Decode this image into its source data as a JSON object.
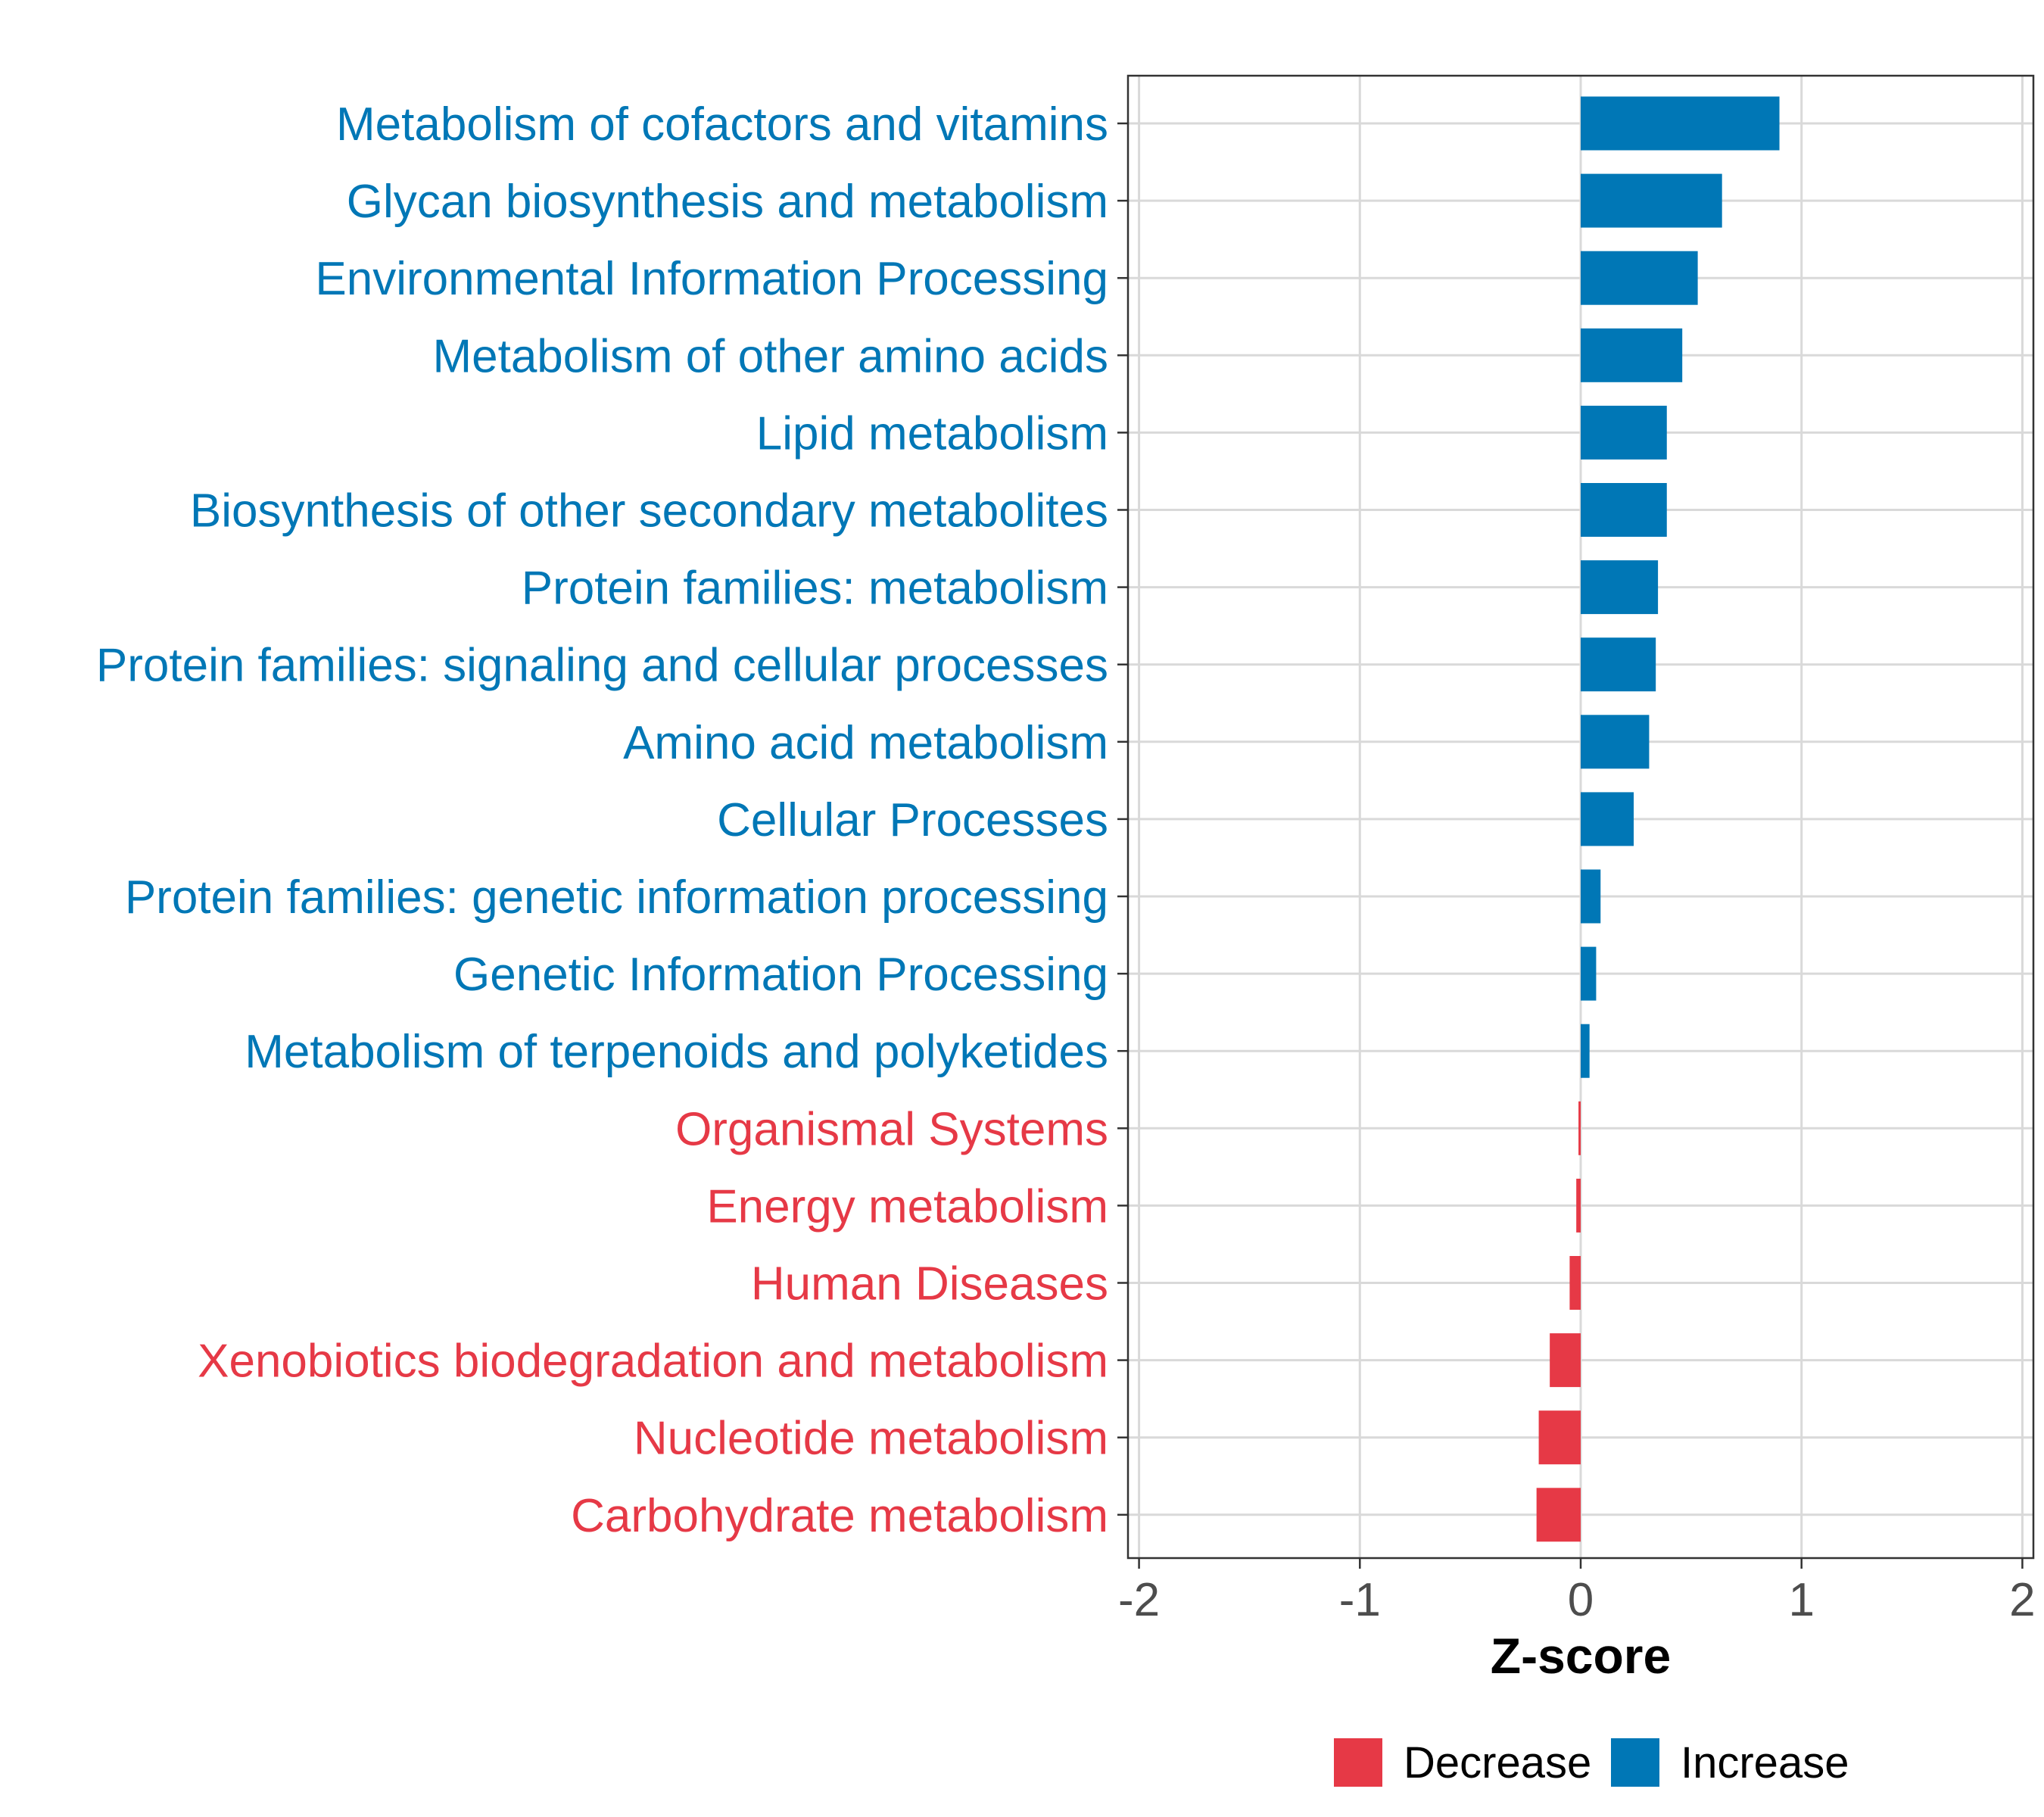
{
  "colors": {
    "decrease": "#e63946",
    "increase": "#0077b6",
    "grid": "#d9d9d9",
    "panel_border": "#333333",
    "tick_text": "#4d4d4d"
  },
  "chart_data": {
    "type": "bar",
    "orientation": "horizontal",
    "title": "",
    "xlabel": "Z-score",
    "ylabel": "",
    "xlim": [
      -2.05,
      2.05
    ],
    "xticks": [
      -2,
      -1,
      0,
      1,
      2
    ],
    "xtick_labels": [
      "-2",
      "-1",
      "0",
      "1",
      "2"
    ],
    "grid": true,
    "legend_position": "bottom",
    "legend": [
      {
        "name": "Decrease",
        "color": "#e63946"
      },
      {
        "name": "Increase",
        "color": "#0077b6"
      }
    ],
    "categories": [
      "Metabolism of cofactors and vitamins",
      "Glycan biosynthesis and metabolism",
      "Environmental Information Processing",
      "Metabolism of other amino acids",
      "Lipid metabolism",
      "Biosynthesis of other secondary metabolites",
      "Protein families: metabolism",
      "Protein families: signaling and cellular processes",
      "Amino acid metabolism",
      "Cellular Processes",
      "Protein families: genetic information processing",
      "Genetic Information Processing",
      "Metabolism of terpenoids and polyketides",
      "Organismal Systems",
      "Energy metabolism",
      "Human Diseases",
      "Xenobiotics biodegradation and metabolism",
      "Nucleotide metabolism",
      "Carbohydrate metabolism"
    ],
    "values": [
      0.9,
      0.64,
      0.53,
      0.46,
      0.39,
      0.39,
      0.35,
      0.34,
      0.31,
      0.24,
      0.09,
      0.07,
      0.04,
      -0.01,
      -0.02,
      -0.05,
      -0.14,
      -0.19,
      -0.2
    ],
    "groups": [
      "Increase",
      "Increase",
      "Increase",
      "Increase",
      "Increase",
      "Increase",
      "Increase",
      "Increase",
      "Increase",
      "Increase",
      "Increase",
      "Increase",
      "Increase",
      "Decrease",
      "Decrease",
      "Decrease",
      "Decrease",
      "Decrease",
      "Decrease"
    ]
  }
}
